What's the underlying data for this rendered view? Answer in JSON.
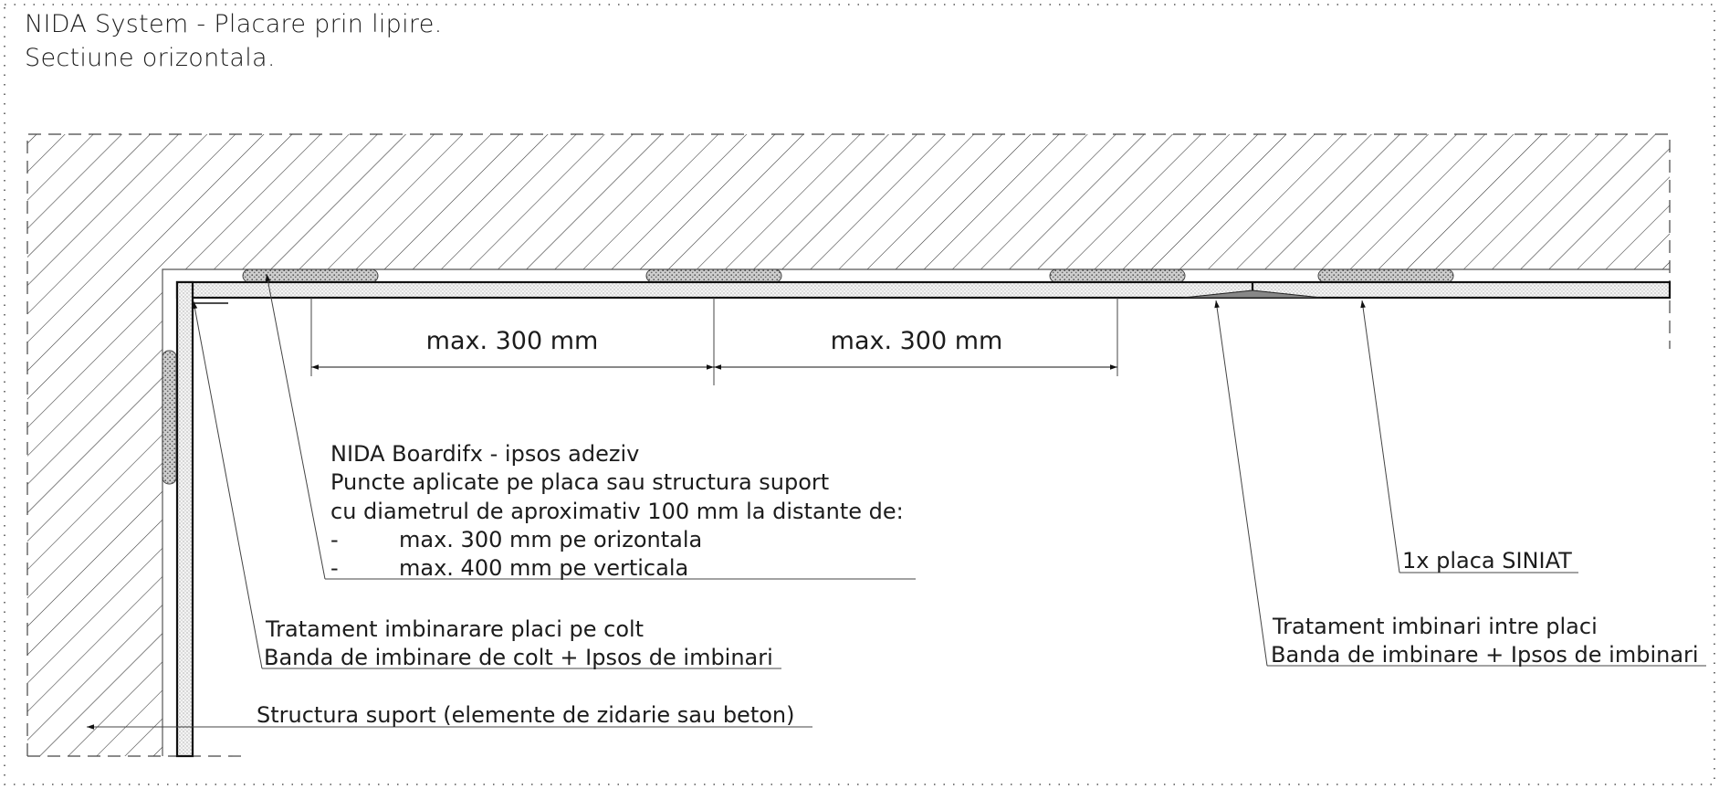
{
  "title": {
    "line1": "NIDA System - Placare prin lipire.",
    "line2": "Sectiune orizontala."
  },
  "dimensions": {
    "dim1": "max. 300 mm",
    "dim2": "max. 300 mm"
  },
  "labels": {
    "adhesive": [
      "NIDA Boardifx - ipsos adeziv",
      "Puncte aplicate pe placa sau structura suport",
      "cu diametrul de aproximativ 100 mm la distante de:",
      "-",
      "max. 300 mm pe orizontala",
      "-",
      "max. 400 mm pe verticala"
    ],
    "corner_treatment": [
      "Tratament imbinarare placi pe colt",
      "Banda de imbinare de colt + Ipsos de imbinari"
    ],
    "support": "Structura suport (elemente de zidarie sau beton)",
    "joint_treatment": [
      "Tratament imbinari intre placi",
      "Banda de imbinare + Ipsos de imbinari"
    ],
    "board": "1x placa SINIAT"
  }
}
